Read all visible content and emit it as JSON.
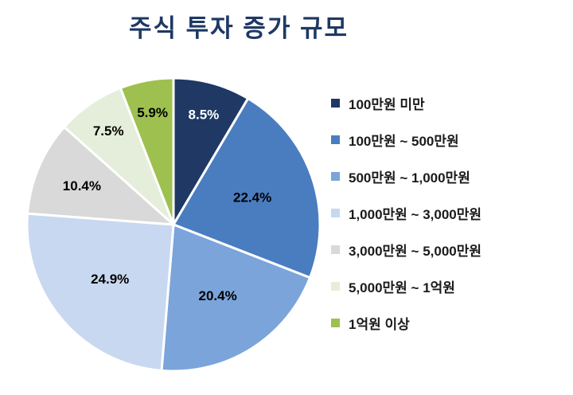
{
  "chart_data": {
    "type": "pie",
    "title": "주식 투자 증가 규모",
    "legend_position": "right",
    "start_angle": 0,
    "direction": "clockwise",
    "slices": [
      {
        "label": "100만원 미만",
        "value": 8.5,
        "percent_label": "8.5%",
        "color": "#1F3864"
      },
      {
        "label": "100만원 ~ 500만원",
        "value": 22.4,
        "percent_label": "22.4%",
        "color": "#4A7DC0"
      },
      {
        "label": "500만원 ~ 1,000만원",
        "value": 20.4,
        "percent_label": "20.4%",
        "color": "#7BA4DA"
      },
      {
        "label": "1,000만원 ~ 3,000만원",
        "value": 24.9,
        "percent_label": "24.9%",
        "color": "#C8D8F0"
      },
      {
        "label": "3,000만원 ~ 5,000만원",
        "value": 10.4,
        "percent_label": "10.4%",
        "color": "#D9D9D9"
      },
      {
        "label": "5,000만원 ~ 1억원",
        "value": 7.5,
        "percent_label": "7.5%",
        "color": "#E5EEDA"
      },
      {
        "label": "1억원 이상",
        "value": 5.9,
        "percent_label": "5.9%",
        "color": "#9EC04F"
      }
    ]
  }
}
